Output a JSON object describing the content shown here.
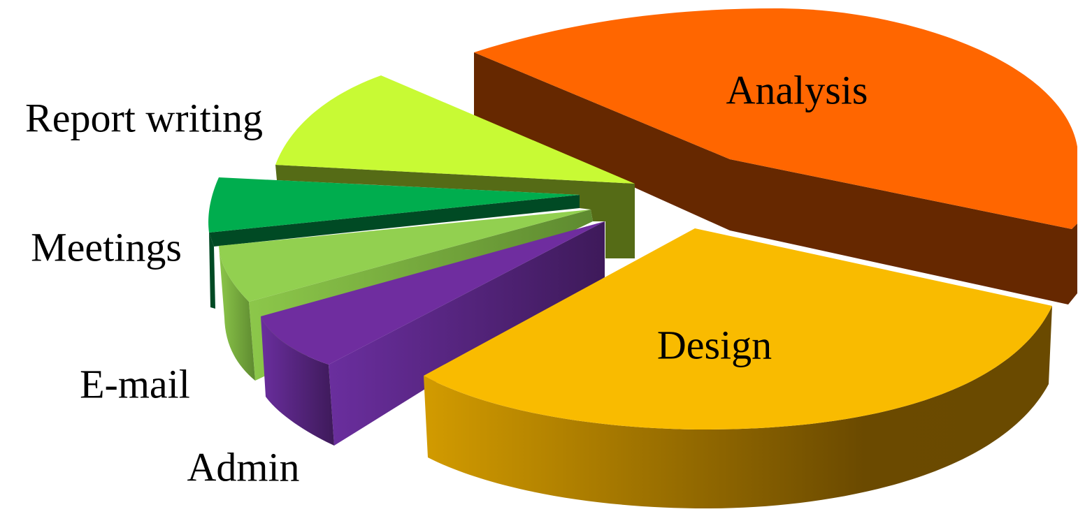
{
  "chart_data": {
    "type": "pie",
    "style": "3d-exploded",
    "categories": [
      "Analysis",
      "Design",
      "Admin",
      "E-mail",
      "Meetings",
      "Report writing"
    ],
    "values": [
      39,
      32,
      9,
      7,
      4,
      9
    ],
    "value_unit": "percent (estimated)",
    "legend": "none",
    "colors": {
      "Analysis": "#FF6600",
      "Design": "#F9BB00",
      "Admin": "#6F2D9F",
      "E-mail": "#92D050",
      "Meetings": "#00AD4E",
      "Report writing": "#C8FA34"
    },
    "side_colors": {
      "Analysis": "#662800",
      "Design": "#A77800",
      "Admin": "#451C61",
      "E-mail": "#4E6C28",
      "Meetings": "#004A24",
      "Report writing": "#556B16"
    }
  }
}
